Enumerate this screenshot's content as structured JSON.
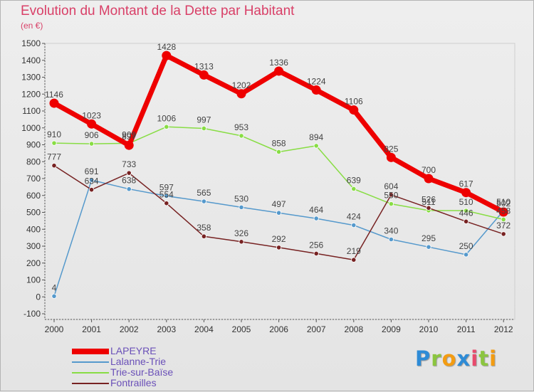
{
  "chart_data": {
    "type": "line",
    "title": "Evolution du Montant de la Dette par Habitant",
    "unit_label": "(en €)",
    "x": [
      "2000",
      "2001",
      "2002",
      "2003",
      "2004",
      "2005",
      "2006",
      "2007",
      "2008",
      "2009",
      "2010",
      "2011",
      "2012"
    ],
    "ylim": [
      -100,
      1500
    ],
    "yticks": [
      -100,
      0,
      100,
      200,
      300,
      400,
      500,
      600,
      700,
      800,
      900,
      1000,
      1100,
      1200,
      1300,
      1400,
      1500
    ],
    "grid": false,
    "legend_position": "bottom-left",
    "series": [
      {
        "name": "LAPEYRE",
        "color": "#ee0000",
        "values": [
          1146,
          1023,
          897,
          1428,
          1313,
          1202,
          1336,
          1224,
          1106,
          825,
          700,
          617,
          502
        ]
      },
      {
        "name": "Lalanne-Trie",
        "color": "#5599cc",
        "values": [
          4,
          691,
          638,
          597,
          565,
          530,
          497,
          464,
          424,
          340,
          295,
          250,
          510
        ]
      },
      {
        "name": "Trie-sur-Baïse",
        "color": "#88dd44",
        "values": [
          910,
          906,
          909,
          1006,
          997,
          953,
          858,
          894,
          639,
          550,
          511,
          510,
          458
        ]
      },
      {
        "name": "Fontrailles",
        "color": "#772222",
        "values": [
          777,
          634,
          733,
          554,
          358,
          326,
          292,
          256,
          219,
          604,
          526,
          446,
          372
        ]
      }
    ]
  },
  "brand": {
    "letters": [
      "P",
      "r",
      "o",
      "x",
      "i",
      "t",
      "i"
    ],
    "colors": [
      "#2e8bd6",
      "#8bc53f",
      "#f39c12",
      "#2e8bd6",
      "#e84a6c",
      "#8bc53f",
      "#f39c12"
    ]
  }
}
